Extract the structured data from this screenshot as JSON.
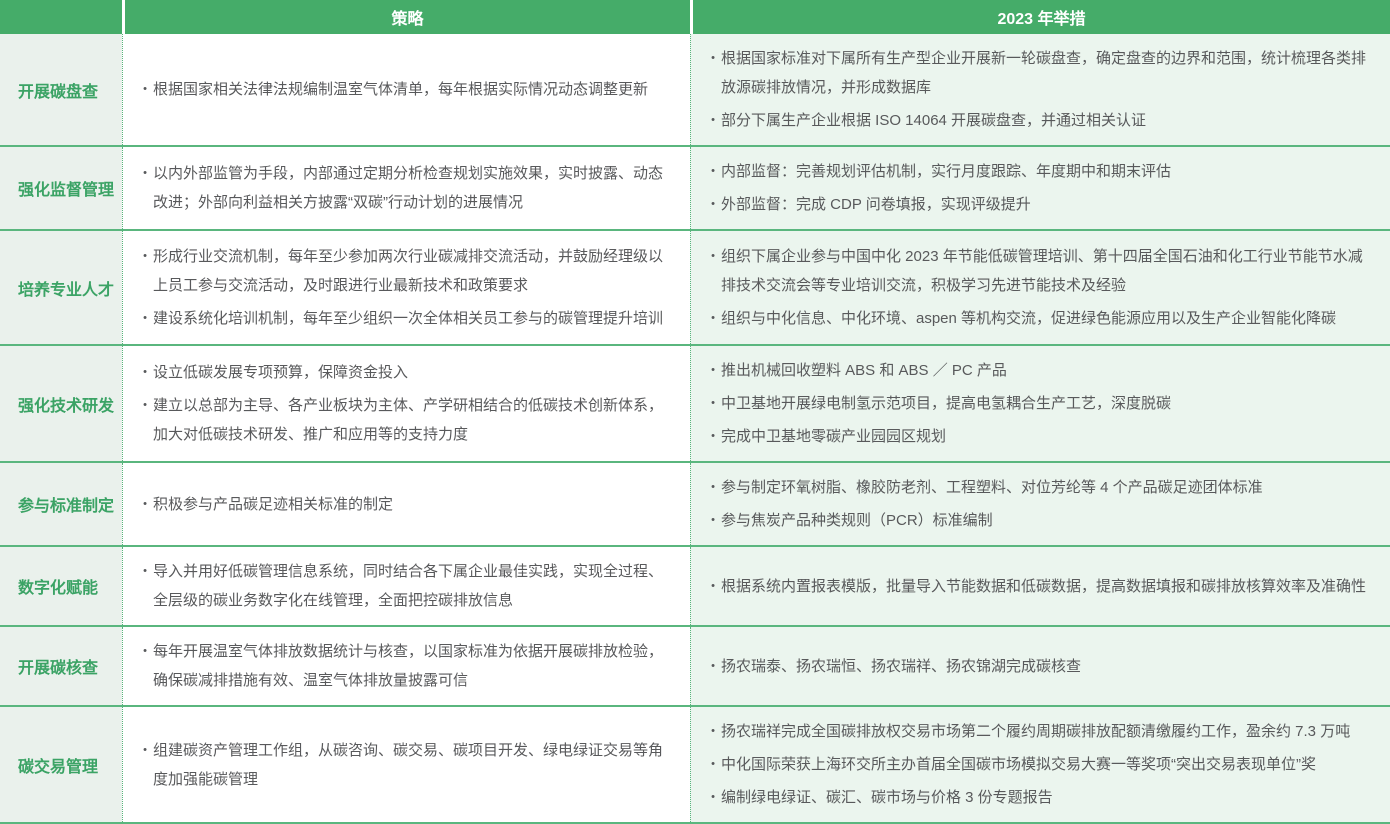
{
  "colors": {
    "header_green": "#45ac69",
    "row_separator_green": "#5ab67e",
    "label_text_green": "#3ba365",
    "label_column_bg": "#eaf1ec",
    "measures_column_bg": "#ebf5ee",
    "body_text": "#58595b"
  },
  "table": {
    "header": {
      "strategy": "策略",
      "measures": "2023 年举措"
    },
    "bullet_icon": "•",
    "rows": [
      {
        "label": "开展碳盘查",
        "strategy": [
          "根据国家相关法律法规编制温室气体清单，每年根据实际情况动态调整更新"
        ],
        "measures": [
          "根据国家标准对下属所有生产型企业开展新一轮碳盘查，确定盘查的边界和范围，统计梳理各类排放源碳排放情况，并形成数据库",
          "部分下属生产企业根据 ISO 14064 开展碳盘查，并通过相关认证"
        ]
      },
      {
        "label": "强化监督管理",
        "strategy": [
          "以内外部监管为手段，内部通过定期分析检查规划实施效果，实时披露、动态改进；外部向利益相关方披露“双碳”行动计划的进展情况"
        ],
        "measures": [
          "内部监督：完善规划评估机制，实行月度跟踪、年度期中和期末评估",
          "外部监督：完成 CDP 问卷填报，实现评级提升"
        ]
      },
      {
        "label": "培养专业人才",
        "strategy": [
          "形成行业交流机制，每年至少参加两次行业碳减排交流活动，并鼓励经理级以上员工参与交流活动，及时跟进行业最新技术和政策要求",
          "建设系统化培训机制，每年至少组织一次全体相关员工参与的碳管理提升培训"
        ],
        "measures": [
          "组织下属企业参与中国中化 2023 年节能低碳管理培训、第十四届全国石油和化工行业节能节水减排技术交流会等专业培训交流，积极学习先进节能技术及经验",
          "组织与中化信息、中化环境、aspen 等机构交流，促进绿色能源应用以及生产企业智能化降碳"
        ]
      },
      {
        "label": "强化技术研发",
        "strategy": [
          "设立低碳发展专项预算，保障资金投入",
          "建立以总部为主导、各产业板块为主体、产学研相结合的低碳技术创新体系，加大对低碳技术研发、推广和应用等的支持力度"
        ],
        "measures": [
          "推出机械回收塑料 ABS 和 ABS ／ PC 产品",
          "中卫基地开展绿电制氢示范项目，提高电氢耦合生产工艺，深度脱碳",
          "完成中卫基地零碳产业园园区规划"
        ]
      },
      {
        "label": "参与标准制定",
        "strategy": [
          "积极参与产品碳足迹相关标准的制定"
        ],
        "measures": [
          "参与制定环氧树脂、橡胶防老剂、工程塑料、对位芳纶等 4 个产品碳足迹团体标准",
          "参与焦炭产品种类规则（PCR）标准编制"
        ]
      },
      {
        "label": "数字化赋能",
        "strategy": [
          "导入并用好低碳管理信息系统，同时结合各下属企业最佳实践，实现全过程、全层级的碳业务数字化在线管理，全面把控碳排放信息"
        ],
        "measures": [
          "根据系统内置报表模版，批量导入节能数据和低碳数据，提高数据填报和碳排放核算效率及准确性"
        ]
      },
      {
        "label": "开展碳核查",
        "strategy": [
          "每年开展温室气体排放数据统计与核查，以国家标准为依据开展碳排放检验，确保碳减排措施有效、温室气体排放量披露可信"
        ],
        "measures": [
          "扬农瑞泰、扬农瑞恒、扬农瑞祥、扬农锦湖完成碳核查"
        ]
      },
      {
        "label": "碳交易管理",
        "strategy": [
          "组建碳资产管理工作组，从碳咨询、碳交易、碳项目开发、绿电绿证交易等角度加强能碳管理"
        ],
        "measures": [
          "扬农瑞祥完成全国碳排放权交易市场第二个履约周期碳排放配额清缴履约工作，盈余约 7.3 万吨",
          "中化国际荣获上海环交所主办首届全国碳市场模拟交易大赛一等奖项“突出交易表现单位”奖",
          "编制绿电绿证、碳汇、碳市场与价格 3 份专题报告"
        ]
      }
    ]
  }
}
